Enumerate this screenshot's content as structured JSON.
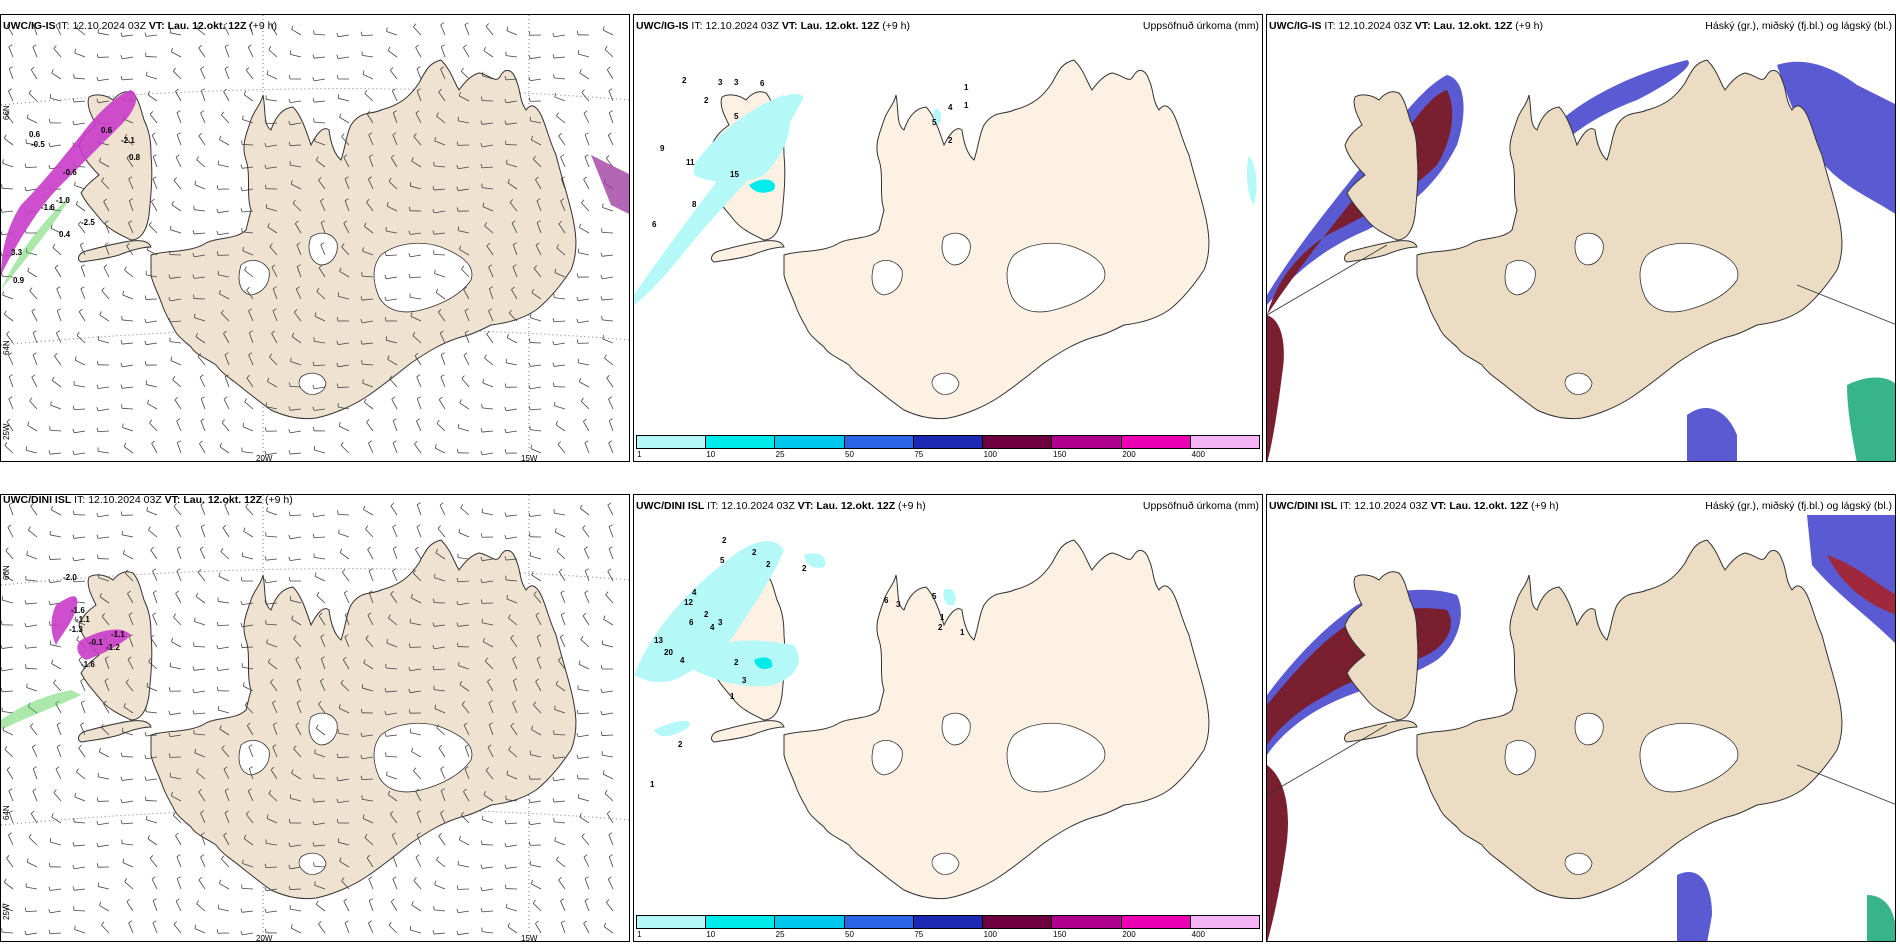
{
  "rows": [
    {
      "wind": {
        "model": "UWC/IG-IS",
        "it_label": "IT:",
        "it": "12.10.2024 03Z",
        "vt_label": "VT:",
        "vt": "Lau. 12.okt. 12Z",
        "lead": "(+9 h)"
      },
      "precip": {
        "model": "UWC/IG-IS",
        "it_label": "IT:",
        "it": "12.10.2024 03Z",
        "vt_label": "VT:",
        "vt": "Lau. 12.okt. 12Z",
        "lead": "(+9 h)",
        "right_title": "Uppsöfnuð úrkoma (mm)"
      },
      "cloud": {
        "model": "UWC/IG-IS",
        "it_label": "IT:",
        "it": "12.10.2024 03Z",
        "vt_label": "VT:",
        "vt": "Lau. 12.okt. 12Z",
        "lead": "(+9 h)",
        "right_title": "Háský (gr.), miðský (fj.bl.) og lágský (bl.)"
      }
    },
    {
      "wind": {
        "model": "UWC/DINI ISL",
        "it_label": "IT:",
        "it": "12.10.2024 03Z",
        "vt_label": "VT:",
        "vt": "Lau. 12.okt. 12Z",
        "lead": "(+9 h)"
      },
      "precip": {
        "model": "UWC/DINI ISL",
        "it_label": "IT:",
        "it": "12.10.2024 03Z",
        "vt_label": "VT:",
        "vt": "Lau. 12.okt. 12Z",
        "lead": "(+9 h)",
        "right_title": "Uppsöfnuð úrkoma (mm)"
      },
      "cloud": {
        "model": "UWC/DINI ISL",
        "it_label": "IT:",
        "it": "12.10.2024 03Z",
        "vt_label": "VT:",
        "vt": "Lau. 12.okt. 12Z",
        "lead": "(+9 h)",
        "right_title": "Háský (gr.), miðský (fj.bl.) og lágský (bl.)"
      }
    }
  ],
  "axis_labels": {
    "lon_20w": "20W",
    "lon_15w": "15W",
    "lon_25w": "25W",
    "lat_66n": "66N",
    "lat_64n": "64N"
  },
  "colorbar": {
    "labels": [
      "1",
      "10",
      "25",
      "50",
      "75",
      "100",
      "150",
      "200",
      "400"
    ],
    "colors": [
      "#b4f8f8",
      "#00ecec",
      "#00c8ec",
      "#2c64e8",
      "#1c28b4",
      "#6e0040",
      "#b00090",
      "#ec00b4",
      "#f4b4f4"
    ]
  },
  "precip_values": {
    "top": [
      "2",
      "3",
      "3",
      "6",
      "2",
      "5",
      "9",
      "11",
      "15",
      "8",
      "6",
      "1",
      "4",
      "1",
      "5",
      "2"
    ],
    "bottom": [
      "2",
      "2",
      "5",
      "2",
      "2",
      "4",
      "2",
      "12",
      "6",
      "4",
      "3",
      "13",
      "20",
      "4",
      "2",
      "3",
      "1",
      "2",
      "1",
      "6",
      "3",
      "5",
      "1",
      "2",
      "1"
    ]
  },
  "wind_values": {
    "top": [
      "0.6",
      "-0.5",
      "0.6",
      "-0.6",
      "-2.1",
      "0.8",
      "-1.0",
      "-1.6",
      "-2.5",
      "0.4",
      "3.3",
      "0.9"
    ],
    "bottom": [
      "-2.0",
      "-1.6",
      "-1.1",
      "-1.3",
      "-0.1",
      "-1.1",
      "-1.2",
      "-1.6"
    ]
  },
  "colors": {
    "land_wind": "#efe2d0",
    "land_precip": "#fdf1e4",
    "land_cloud": "#ecdcc4",
    "ice": "#ffffff"
  }
}
